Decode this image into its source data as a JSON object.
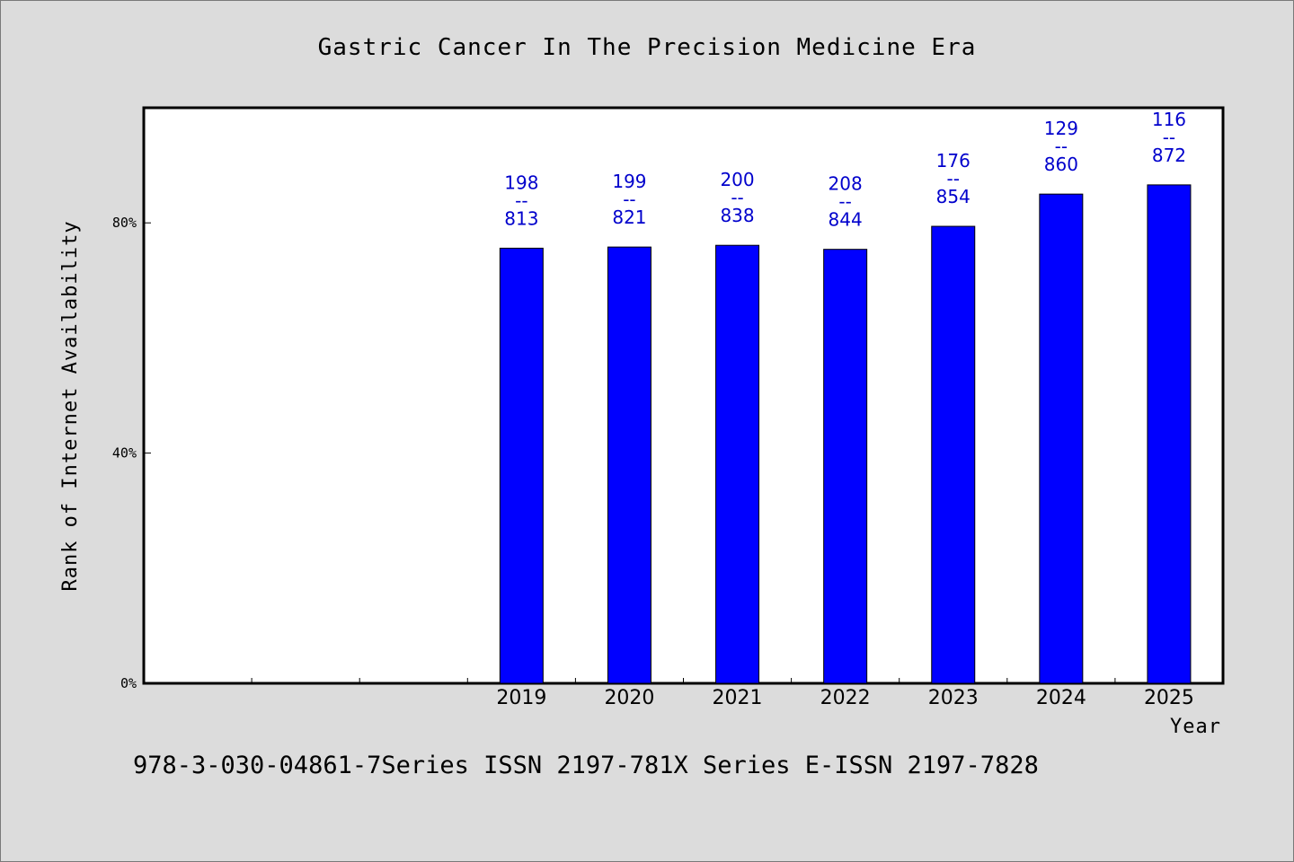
{
  "footer": "978-3-030-04861-7Series ISSN 2197-781X Series E-ISSN 2197-7828",
  "colors": {
    "background": "#dcdcdc",
    "plot_background": "#ffffff",
    "bar": "#0000ff",
    "data_label": "#0000cc",
    "axis": "#000000"
  },
  "chart_data": {
    "type": "bar",
    "title": "Gastric Cancer In The Precision Medicine Era",
    "xlabel": "Year",
    "ylabel": "Rank of Internet Availability",
    "categories": [
      "",
      "",
      "",
      "2019",
      "2020",
      "2021",
      "2022",
      "2023",
      "2024",
      "2025"
    ],
    "values": [
      null,
      null,
      null,
      75.6,
      75.8,
      76.1,
      75.4,
      79.4,
      85.0,
      86.6
    ],
    "labels_top": [
      "",
      "",
      "",
      "198",
      "199",
      "200",
      "208",
      "176",
      "129",
      "116"
    ],
    "labels_sep": "--",
    "labels_bottom": [
      "",
      "",
      "",
      "813",
      "821",
      "838",
      "844",
      "854",
      "860",
      "872"
    ],
    "ylim": [
      0,
      100
    ],
    "yticks": [
      0,
      40,
      80
    ],
    "ytick_labels": [
      "0%",
      "40%",
      "80%"
    ],
    "grid": false,
    "legend": "none"
  }
}
